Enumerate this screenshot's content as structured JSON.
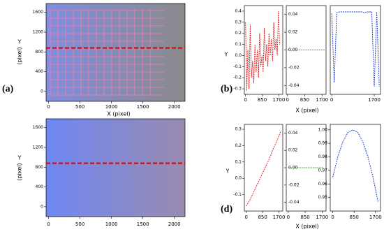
{
  "chart_data": [
    {
      "type": "image",
      "panel_label": "(a)",
      "xlabel": "X    (pixel)",
      "ylabel_lines": [
        "Y",
        "(pixel)"
      ],
      "colors": [
        "#7f8ee0",
        "#8a8a8a",
        "#e47cb4"
      ],
      "xlim": [
        -40,
        2170
      ],
      "xticks": [
        0,
        500,
        1000,
        1500,
        2000
      ],
      "ylim": [
        -200,
        1780
      ],
      "yticks": [
        0,
        400,
        800,
        1200,
        1600
      ],
      "hline": 880,
      "hline_color": "#cc1111"
    },
    {
      "type": "group",
      "panel_label": "(b)",
      "ylabel": "Y",
      "xlabel": "X    (pixel)",
      "subplots": [
        {
          "type": "line",
          "color": "#e01010",
          "dash": true,
          "xlim": [
            -60,
            1900
          ],
          "xticks": [
            0,
            850,
            1700
          ],
          "ylim": [
            -0.35,
            0.45
          ],
          "yticks": [
            0.4,
            0.3,
            0.2,
            0.1,
            {
              "value": 0,
              "label": "0.0"
            },
            -0.1,
            -0.2,
            -0.3
          ],
          "x": [
            0,
            60,
            120,
            180,
            240,
            300,
            360,
            420,
            480,
            540,
            600,
            660,
            720,
            780,
            840,
            900,
            960,
            1020,
            1080,
            1140,
            1200,
            1260,
            1320,
            1380,
            1440,
            1500,
            1560,
            1620,
            1680,
            1740
          ],
          "values": [
            0.3,
            -0.32,
            0.05,
            -0.3,
            0.28,
            -0.2,
            -0.05,
            -0.25,
            0.1,
            -0.15,
            0.05,
            -0.2,
            0.2,
            -0.1,
            0.0,
            -0.15,
            0.25,
            -0.05,
            0.1,
            -0.1,
            0.2,
            0.0,
            0.15,
            -0.05,
            0.3,
            0.05,
            0.15,
            0.0,
            0.4,
            0.1
          ]
        },
        {
          "type": "line",
          "color": "#22aa22",
          "dash": true,
          "xlim": [
            -60,
            1900
          ],
          "xticks": [
            0,
            850,
            1700
          ],
          "ylim": [
            -0.05,
            0.05
          ],
          "yticks": [
            0.04,
            0.02,
            {
              "value": 0,
              "label": "0.00"
            },
            -0.02,
            -0.04
          ],
          "x": [
            0,
            1900
          ],
          "values": [
            0,
            0
          ]
        },
        {
          "type": "line",
          "color": "#1030d0",
          "dash": true,
          "xlim": [
            -60,
            1950
          ],
          "xticks": [
            0,
            1700
          ],
          "ylim": [
            -0.05,
            1.08
          ],
          "x": [
            0,
            100,
            200,
            300,
            400,
            500,
            600,
            700,
            800,
            900,
            1000,
            1100,
            1200,
            1300,
            1400,
            1500,
            1600,
            1700,
            1800,
            1900
          ],
          "values": [
            0.98,
            0.1,
            0.99,
            1.0,
            1.0,
            1.0,
            1.0,
            1.0,
            1.0,
            1.0,
            1.0,
            1.0,
            1.0,
            0.99,
            1.0,
            1.0,
            1.0,
            0.05,
            1.0,
            0.05
          ]
        }
      ]
    },
    {
      "type": "image",
      "ylabel_lines": [
        "Y",
        "(pixel)"
      ],
      "colors": [
        "#6e88f2",
        "#9a8ab0"
      ],
      "xlim": [
        -40,
        2170
      ],
      "xticks": [
        0,
        500,
        1000,
        1500,
        2000
      ],
      "ylim": [
        -200,
        1780
      ],
      "yticks": [
        0,
        400,
        800,
        1200,
        1600
      ],
      "hline": 880,
      "hline_color": "#cc1111"
    },
    {
      "type": "group",
      "panel_label": "(d)",
      "ylabel": "Y",
      "xlabel": "X    (pixel)",
      "subplots": [
        {
          "type": "line",
          "color": "#e01010",
          "dash": true,
          "xlim": [
            -100,
            1900
          ],
          "xticks": [
            0,
            850,
            1700
          ],
          "ylim": [
            -0.2,
            0.33
          ],
          "yticks": [
            0.3,
            0.2,
            0.1,
            {
              "value": 0,
              "label": "0.0"
            },
            -0.1
          ],
          "x": [
            0,
            200,
            400,
            600,
            800,
            1000,
            1200,
            1400,
            1600,
            1800
          ],
          "values": [
            -0.17,
            -0.13,
            -0.08,
            -0.03,
            0.02,
            0.07,
            0.12,
            0.18,
            0.23,
            0.29
          ]
        },
        {
          "type": "line",
          "color": "#22aa22",
          "dash": true,
          "xlim": [
            -100,
            1900
          ],
          "xticks": [
            0,
            850,
            1700
          ],
          "ylim": [
            -0.05,
            0.05
          ],
          "yticks": [
            0.04,
            0.02,
            {
              "value": 0,
              "label": "0.00"
            },
            -0.02,
            -0.04
          ],
          "x": [
            0,
            1800
          ],
          "values": [
            0,
            0
          ]
        },
        {
          "type": "line",
          "color": "#1030d0",
          "dash": true,
          "xlim": [
            -100,
            1900
          ],
          "xticks": [
            0,
            850,
            1700
          ],
          "ylim": [
            0.94,
            1.004
          ],
          "yticks": [
            {
              "value": 1,
              "label": "1.00"
            },
            0.99,
            0.98,
            0.97,
            0.96,
            0.95
          ],
          "x": [
            0,
            200,
            400,
            600,
            800,
            1000,
            1200,
            1400,
            1600,
            1800
          ],
          "values": [
            0.965,
            0.98,
            0.991,
            0.998,
            1.0,
            0.998,
            0.991,
            0.98,
            0.965,
            0.947
          ]
        }
      ]
    }
  ]
}
